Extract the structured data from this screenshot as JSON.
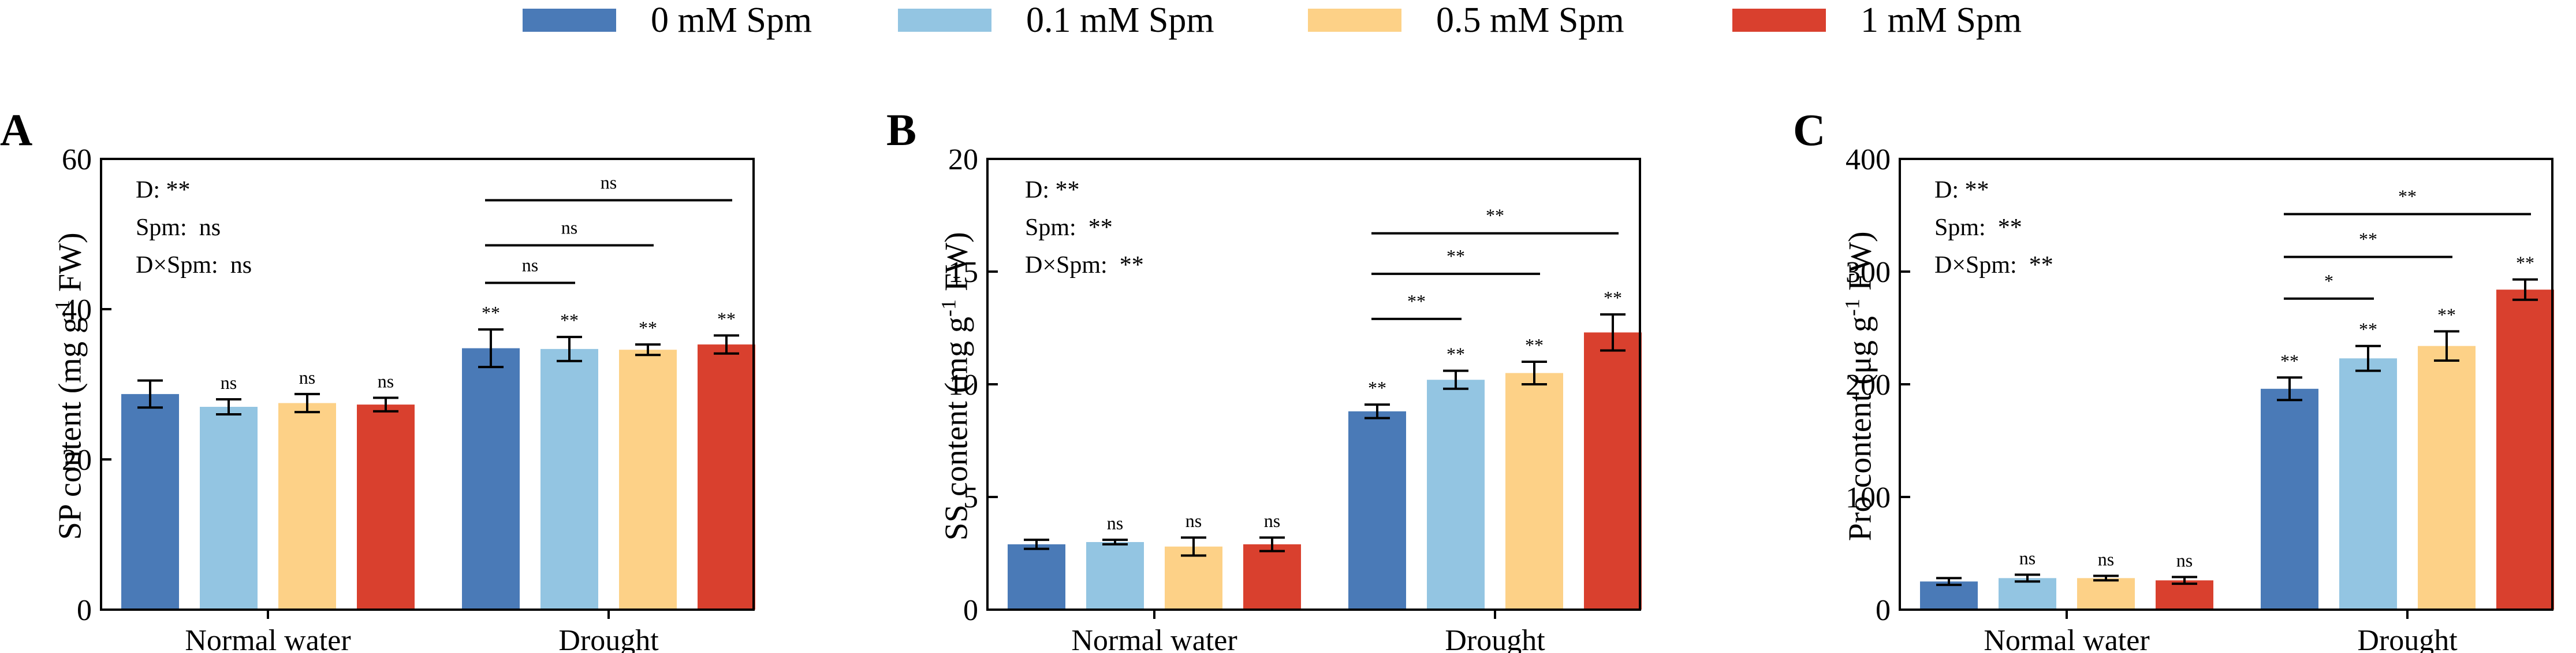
{
  "legend": {
    "items": [
      {
        "label": "0 mM Spm",
        "color": "#4a7ab7"
      },
      {
        "label": "0.1 mM Spm",
        "color": "#93c5e2"
      },
      {
        "label": "0.5 mM Spm",
        "color": "#fdd187"
      },
      {
        "label": "1 mM Spm",
        "color": "#d9402e"
      }
    ]
  },
  "chart_data": [
    {
      "type": "bar",
      "panel": "A",
      "ylabel_main": "SP content (mg g",
      "ylabel_sup": "-1",
      "ylabel_tail": " FW)",
      "ylim": [
        0,
        60
      ],
      "yticks": [
        "0",
        "20",
        "40",
        "60"
      ],
      "yticks_values": [
        0,
        20,
        40,
        60
      ],
      "categories": [
        "Normal water",
        "Drought"
      ],
      "series": [
        {
          "name": "0 mM Spm",
          "values": [
            28.7,
            34.8
          ],
          "errors": [
            1.8,
            2.5
          ],
          "sig": [
            "",
            "**"
          ]
        },
        {
          "name": "0.1 mM Spm",
          "values": [
            27.0,
            34.7
          ],
          "errors": [
            1.0,
            1.6
          ],
          "sig": [
            "ns",
            "**"
          ]
        },
        {
          "name": "0.5 mM Spm",
          "values": [
            27.5,
            34.6
          ],
          "errors": [
            1.2,
            0.7
          ],
          "sig": [
            "ns",
            "**"
          ]
        },
        {
          "name": "1 mM Spm",
          "values": [
            27.3,
            35.3
          ],
          "errors": [
            0.9,
            1.2
          ],
          "sig": [
            "ns",
            "**"
          ]
        }
      ],
      "stats": [
        {
          "label": "D:",
          "value": "**"
        },
        {
          "label": "Spm:",
          "value": "ns"
        },
        {
          "label": "D×Spm:",
          "value": "ns"
        }
      ],
      "comparisons": [
        {
          "from": "0 mM Spm",
          "to": "0.1 mM Spm",
          "label": "ns",
          "y": 43.5
        },
        {
          "from": "0 mM Spm",
          "to": "0.5 mM Spm",
          "label": "ns",
          "y": 48.5
        },
        {
          "from": "0 mM Spm",
          "to": "1 mM Spm",
          "label": "ns",
          "y": 54.5
        }
      ]
    },
    {
      "type": "bar",
      "panel": "B",
      "ylabel_main": "SS content (mg g",
      "ylabel_sup": "-1",
      "ylabel_tail": " FW)",
      "ylim": [
        0,
        20
      ],
      "yticks": [
        "0",
        "5",
        "10",
        "15",
        "20"
      ],
      "yticks_values": [
        0,
        5,
        10,
        15,
        20
      ],
      "categories": [
        "Normal water",
        "Drought"
      ],
      "series": [
        {
          "name": "0 mM Spm",
          "values": [
            2.9,
            8.8
          ],
          "errors": [
            0.2,
            0.3
          ],
          "sig": [
            "",
            "**"
          ]
        },
        {
          "name": "0.1 mM Spm",
          "values": [
            3.0,
            10.2
          ],
          "errors": [
            0.1,
            0.4
          ],
          "sig": [
            "ns",
            "**"
          ]
        },
        {
          "name": "0.5 mM Spm",
          "values": [
            2.8,
            10.5
          ],
          "errors": [
            0.4,
            0.5
          ],
          "sig": [
            "ns",
            "**"
          ]
        },
        {
          "name": "1 mM Spm",
          "values": [
            2.9,
            12.3
          ],
          "errors": [
            0.3,
            0.8
          ],
          "sig": [
            "ns",
            "**"
          ]
        }
      ],
      "stats": [
        {
          "label": "D:",
          "value": "**"
        },
        {
          "label": "Spm:",
          "value": "**"
        },
        {
          "label": "D×Spm:",
          "value": "**"
        }
      ],
      "comparisons": [
        {
          "from": "0 mM Spm",
          "to": "0.1 mM Spm",
          "label": "**",
          "y": 12.9
        },
        {
          "from": "0 mM Spm",
          "to": "0.5 mM Spm",
          "label": "**",
          "y": 14.9
        },
        {
          "from": "0 mM Spm",
          "to": "1 mM Spm",
          "label": "**",
          "y": 16.7
        }
      ]
    },
    {
      "type": "bar",
      "panel": "C",
      "ylabel_main": "Pro content (μg g",
      "ylabel_sup": "-1",
      "ylabel_tail": " FW)",
      "ylim": [
        0,
        400
      ],
      "yticks": [
        "0",
        "100",
        "200",
        "300",
        "400"
      ],
      "yticks_values": [
        0,
        100,
        200,
        300,
        400
      ],
      "categories": [
        "Normal water",
        "Drought"
      ],
      "series": [
        {
          "name": "0 mM Spm",
          "values": [
            25,
            196
          ],
          "errors": [
            3,
            10
          ],
          "sig": [
            "",
            "**"
          ]
        },
        {
          "name": "0.1 mM Spm",
          "values": [
            28,
            223
          ],
          "errors": [
            3,
            11
          ],
          "sig": [
            "ns",
            "**"
          ]
        },
        {
          "name": "0.5 mM Spm",
          "values": [
            28,
            234
          ],
          "errors": [
            2,
            13
          ],
          "sig": [
            "ns",
            "**"
          ]
        },
        {
          "name": "1 mM Spm",
          "values": [
            26,
            284
          ],
          "errors": [
            3,
            9
          ],
          "sig": [
            "ns",
            "**"
          ]
        }
      ],
      "stats": [
        {
          "label": "D:",
          "value": "**"
        },
        {
          "label": "Spm:",
          "value": "**"
        },
        {
          "label": "D×Spm:",
          "value": "**"
        }
      ],
      "comparisons": [
        {
          "from": "0 mM Spm",
          "to": "0.1 mM Spm",
          "label": "*",
          "y": 276
        },
        {
          "from": "0 mM Spm",
          "to": "0.5 mM Spm",
          "label": "**",
          "y": 313
        },
        {
          "from": "0 mM Spm",
          "to": "1 mM Spm",
          "label": "**",
          "y": 351
        }
      ]
    }
  ]
}
